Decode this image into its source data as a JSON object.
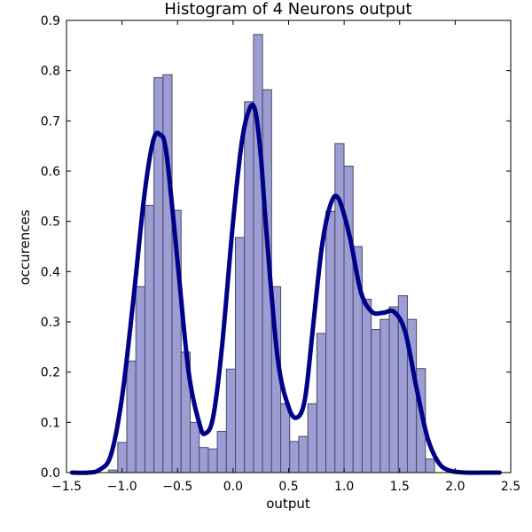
{
  "chart_data": {
    "type": "bar",
    "title": "Histogram of 4 Neurons output",
    "xlabel": "output",
    "ylabel": "occurences",
    "xlim": [
      -1.5,
      2.5
    ],
    "ylim": [
      0.0,
      0.9
    ],
    "xticks": [
      -1.5,
      -1.0,
      -0.5,
      0.0,
      0.5,
      1.0,
      1.5,
      2.0,
      2.5
    ],
    "xtick_labels": [
      "−1.5",
      "−1.0",
      "−0.5",
      "0.0",
      "0.5",
      "1.0",
      "1.5",
      "2.0",
      "2.5"
    ],
    "yticks": [
      0.0,
      0.1,
      0.2,
      0.3,
      0.4,
      0.5,
      0.6,
      0.7,
      0.8,
      0.9
    ],
    "ytick_labels": [
      "0.0",
      "0.1",
      "0.2",
      "0.3",
      "0.4",
      "0.5",
      "0.6",
      "0.7",
      "0.8",
      "0.9"
    ],
    "histogram": {
      "bin_start": -1.12,
      "bin_width": 0.0815,
      "values": [
        0.005,
        0.06,
        0.222,
        0.37,
        0.532,
        0.786,
        0.792,
        0.522,
        0.24,
        0.1,
        0.05,
        0.047,
        0.082,
        0.206,
        0.468,
        0.738,
        0.872,
        0.762,
        0.37,
        0.137,
        0.062,
        0.072,
        0.137,
        0.277,
        0.52,
        0.655,
        0.61,
        0.45,
        0.345,
        0.285,
        0.305,
        0.33,
        0.352,
        0.305,
        0.207,
        0.027
      ],
      "fill_color": "#9b9dd3",
      "edge_color": "#4a4a6a"
    },
    "kde": {
      "x": [
        -1.45,
        -1.3,
        -1.2,
        -1.1,
        -1.0,
        -0.9,
        -0.8,
        -0.72,
        -0.66,
        -0.6,
        -0.5,
        -0.4,
        -0.3,
        -0.25,
        -0.18,
        -0.1,
        0.0,
        0.08,
        0.15,
        0.2,
        0.25,
        0.3,
        0.4,
        0.5,
        0.58,
        0.65,
        0.72,
        0.8,
        0.88,
        0.95,
        1.05,
        1.15,
        1.25,
        1.35,
        1.45,
        1.55,
        1.65,
        1.75,
        1.85,
        1.95,
        2.1,
        2.25,
        2.4
      ],
      "y": [
        0.0,
        0.0,
        0.006,
        0.035,
        0.15,
        0.34,
        0.55,
        0.66,
        0.673,
        0.635,
        0.42,
        0.2,
        0.095,
        0.078,
        0.11,
        0.25,
        0.5,
        0.66,
        0.725,
        0.72,
        0.63,
        0.48,
        0.23,
        0.13,
        0.11,
        0.15,
        0.29,
        0.45,
        0.535,
        0.545,
        0.47,
        0.36,
        0.32,
        0.318,
        0.32,
        0.28,
        0.17,
        0.07,
        0.02,
        0.004,
        0.0,
        0.0,
        0.0
      ],
      "color": "#000088",
      "linewidth": 5
    }
  }
}
